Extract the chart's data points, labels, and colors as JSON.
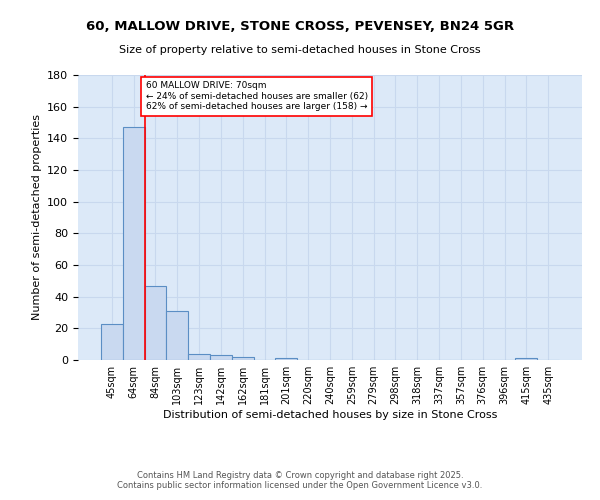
{
  "title1": "60, MALLOW DRIVE, STONE CROSS, PEVENSEY, BN24 5GR",
  "title2": "Size of property relative to semi-detached houses in Stone Cross",
  "xlabel": "Distribution of semi-detached houses by size in Stone Cross",
  "ylabel": "Number of semi-detached properties",
  "categories": [
    "45sqm",
    "64sqm",
    "84sqm",
    "103sqm",
    "123sqm",
    "142sqm",
    "162sqm",
    "181sqm",
    "201sqm",
    "220sqm",
    "240sqm",
    "259sqm",
    "279sqm",
    "298sqm",
    "318sqm",
    "337sqm",
    "357sqm",
    "376sqm",
    "396sqm",
    "415sqm",
    "435sqm"
  ],
  "values": [
    23,
    147,
    47,
    31,
    4,
    3,
    2,
    0,
    1,
    0,
    0,
    0,
    0,
    0,
    0,
    0,
    0,
    0,
    0,
    1,
    0
  ],
  "bar_color": "#c9d9f0",
  "bar_edge_color": "#5b8ec4",
  "grid_color": "#c8d8ee",
  "background_color": "#dce9f8",
  "red_line_x": 1.5,
  "annotation_text": "60 MALLOW DRIVE: 70sqm\n← 24% of semi-detached houses are smaller (62)\n62% of semi-detached houses are larger (158) →",
  "footer1": "Contains HM Land Registry data © Crown copyright and database right 2025.",
  "footer2": "Contains public sector information licensed under the Open Government Licence v3.0.",
  "ylim": [
    0,
    180
  ],
  "yticks": [
    0,
    20,
    40,
    60,
    80,
    100,
    120,
    140,
    160,
    180
  ]
}
